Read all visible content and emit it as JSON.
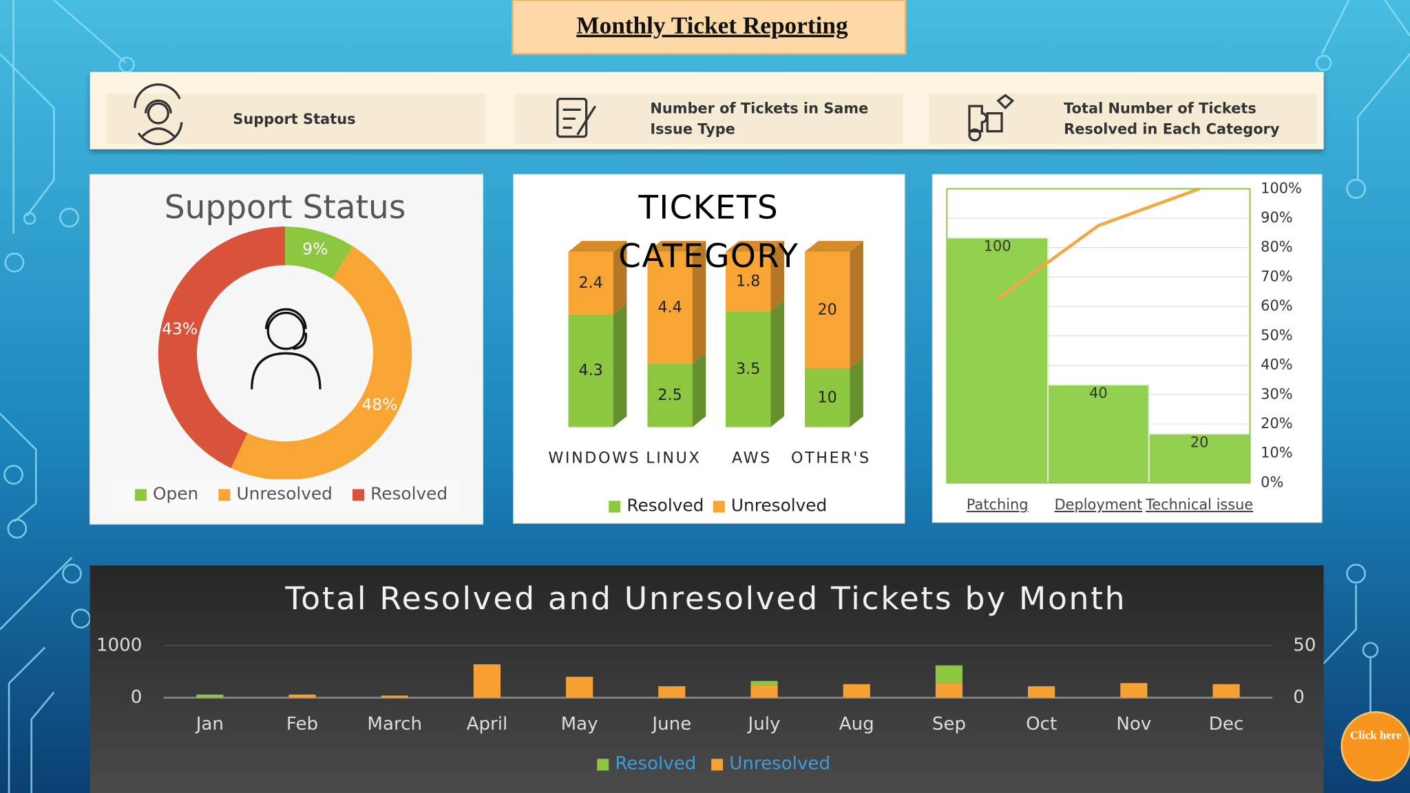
{
  "title": "Monthly Ticket Reporting",
  "header": {
    "items": [
      {
        "label": "Support Status"
      },
      {
        "label": "Number of Tickets in Same Issue Type"
      },
      {
        "label": "Total Number of Tickets Resolved in Each Category"
      }
    ]
  },
  "button": "Click here",
  "chart_data": [
    {
      "type": "donut",
      "title": "Support Status",
      "categories": [
        "Open",
        "Unresolved",
        "Resolved"
      ],
      "values": [
        9,
        48,
        43
      ],
      "value_labels": [
        "9%",
        "48%",
        "43%"
      ],
      "colors": [
        "#8dc63f",
        "#f9a533",
        "#d9533b"
      ]
    },
    {
      "type": "bar",
      "title": "TICKETS CATEGORY",
      "stacked": "percent",
      "categories": [
        "WINDOWS",
        "LINUX",
        "AWS",
        "OTHER'S"
      ],
      "series": [
        {
          "name": "Resolved",
          "color": "#8dc63f",
          "values": [
            4.3,
            2.5,
            3.5,
            10
          ]
        },
        {
          "name": "Unresolved",
          "color": "#f9a533",
          "values": [
            2.4,
            4.4,
            1.8,
            20
          ]
        }
      ]
    },
    {
      "type": "pareto",
      "categories": [
        "Patching",
        "Deployment",
        "Technical issue"
      ],
      "series": [
        {
          "color": "#92d050",
          "values": [
            100,
            40,
            20
          ]
        },
        {
          "color": "#f5a742",
          "axis": "y2",
          "values": [
            62.5,
            87.5,
            100
          ]
        }
      ],
      "ylim": [
        0,
        120
      ],
      "y2lim": [
        0,
        100
      ],
      "y2ticks": [
        {
          "value": 0,
          "label": "0%"
        },
        {
          "value": 10,
          "label": "10%"
        },
        {
          "value": 20,
          "label": "20%"
        },
        {
          "value": 30,
          "label": "30%"
        },
        {
          "value": 40,
          "label": "40%"
        },
        {
          "value": 50,
          "label": "50%"
        },
        {
          "value": 60,
          "label": "60%"
        },
        {
          "value": 70,
          "label": "70%"
        },
        {
          "value": 80,
          "label": "80%"
        },
        {
          "value": 90,
          "label": "90%"
        },
        {
          "value": 100,
          "label": "100%"
        }
      ]
    },
    {
      "type": "bar",
      "title": "Total Resolved and Unresolved Tickets by Month",
      "stacked": true,
      "categories": [
        "Jan",
        "Feb",
        "March",
        "April",
        "May",
        "June",
        "July",
        "Aug",
        "Sep",
        "Oct",
        "Nov",
        "Dec"
      ],
      "series": [
        {
          "name": "Resolved",
          "color": "#8dc63f",
          "axis": "y2",
          "values": [
            3,
            0,
            0,
            0,
            0,
            0,
            4,
            0,
            17,
            0,
            0,
            0
          ]
        },
        {
          "name": "Unresolved",
          "color": "#f7a034",
          "axis": "y2",
          "values": [
            0,
            3,
            2,
            32,
            20,
            11,
            12,
            13,
            14,
            11,
            14,
            13
          ]
        }
      ],
      "ylim": [
        0,
        1000
      ],
      "yticks": [
        0,
        1000
      ],
      "y2lim": [
        0,
        50
      ],
      "y2ticks": [
        0,
        50
      ],
      "grid": true
    }
  ]
}
